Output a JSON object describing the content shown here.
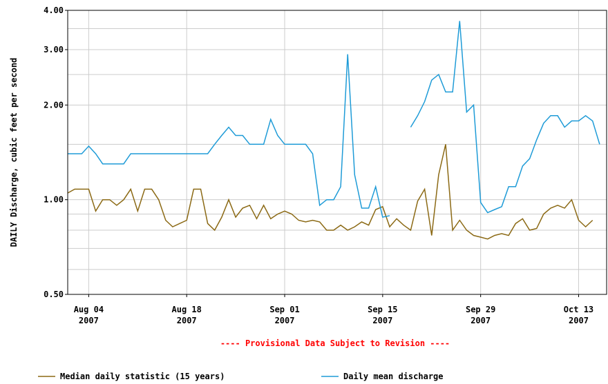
{
  "chart_data": {
    "type": "line",
    "ylabel": "DAILY Discharge, cubic feet per second",
    "annotation": "---- Provisional Data Subject to Revision ----",
    "log_y": true,
    "grid": true,
    "legend": "bottom",
    "xlim": [
      "2007-08-01",
      "2007-10-17"
    ],
    "ylim": [
      0.5,
      4
    ],
    "yticks": [
      {
        "value": 0.5,
        "label": "0.50"
      },
      {
        "value": 1,
        "label": "1.00"
      },
      {
        "value": 2,
        "label": "2.00"
      },
      {
        "value": 3,
        "label": "3.00"
      },
      {
        "value": 4,
        "label": "4.00"
      }
    ],
    "minor_yticks": [
      0.6,
      0.7,
      0.8,
      0.9,
      1.5,
      2.5,
      3.5
    ],
    "xticks": [
      {
        "value": "2007-08-04",
        "label": "Aug 04 2007"
      },
      {
        "value": "2007-08-18",
        "label": "Aug 18 2007"
      },
      {
        "value": "2007-09-01",
        "label": "Sep 01 2007"
      },
      {
        "value": "2007-09-15",
        "label": "Sep 15 2007"
      },
      {
        "value": "2007-09-29",
        "label": "Sep 29 2007"
      },
      {
        "value": "2007-10-13",
        "label": "Oct 13 2007"
      }
    ],
    "x_start": "2007-08-01",
    "series": [
      {
        "name": "Median daily statistic (15 years)",
        "color": "#8b6914",
        "values": [
          1.05,
          1.08,
          1.08,
          1.08,
          0.92,
          1.0,
          1.0,
          0.96,
          1.0,
          1.08,
          0.92,
          1.08,
          1.08,
          1.0,
          0.86,
          0.82,
          0.84,
          0.86,
          1.08,
          1.08,
          0.84,
          0.8,
          0.88,
          1.0,
          0.88,
          0.94,
          0.96,
          0.87,
          0.96,
          0.87,
          0.9,
          0.92,
          0.9,
          0.86,
          0.85,
          0.86,
          0.85,
          0.8,
          0.8,
          0.83,
          0.8,
          0.82,
          0.85,
          0.83,
          0.93,
          0.95,
          0.82,
          0.87,
          0.83,
          0.8,
          0.99,
          1.08,
          0.77,
          1.2,
          1.5,
          0.8,
          0.86,
          0.8,
          0.77,
          0.76,
          0.75,
          0.77,
          0.78,
          0.77,
          0.84,
          0.87,
          0.8,
          0.81,
          0.9,
          0.94,
          0.96,
          0.94,
          1.0,
          0.86,
          0.82,
          0.86
        ]
      },
      {
        "name": "Daily mean discharge",
        "color": "#1e9bd7",
        "values": [
          1.4,
          1.4,
          1.4,
          1.48,
          1.4,
          1.3,
          1.3,
          1.3,
          1.3,
          1.4,
          1.4,
          1.4,
          1.4,
          1.4,
          1.4,
          1.4,
          1.4,
          1.4,
          1.4,
          1.4,
          1.4,
          1.5,
          1.6,
          1.7,
          1.6,
          1.6,
          1.5,
          1.5,
          1.5,
          1.8,
          1.6,
          1.5,
          1.5,
          1.5,
          1.5,
          1.4,
          0.96,
          1.0,
          1.0,
          1.1,
          2.9,
          1.2,
          0.94,
          0.94,
          1.1,
          0.88,
          0.89,
          null,
          null,
          1.7,
          1.85,
          2.05,
          2.4,
          2.5,
          2.2,
          2.2,
          3.7,
          1.9,
          2.0,
          0.98,
          0.91,
          0.93,
          0.95,
          1.1,
          1.1,
          1.28,
          1.35,
          1.55,
          1.75,
          1.85,
          1.85,
          1.7,
          1.78,
          1.78,
          1.85,
          1.78,
          1.5
        ]
      }
    ]
  }
}
